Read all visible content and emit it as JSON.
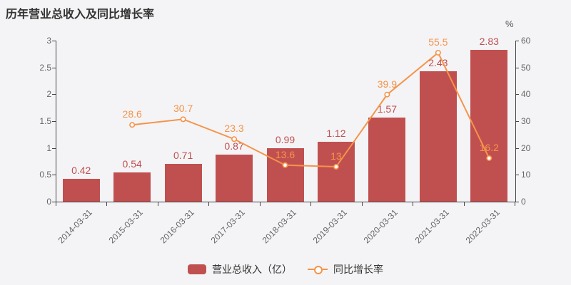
{
  "chart_data": {
    "type": "bar+line",
    "title": "历年营业总收入及同比增长率",
    "categories": [
      "2014-03-31",
      "2015-03-31",
      "2016-03-31",
      "2017-03-31",
      "2018-03-31",
      "2019-03-31",
      "2020-03-31",
      "2021-03-31",
      "2022-03-31"
    ],
    "series": [
      {
        "name": "营业总收入（亿）",
        "type": "bar",
        "axis": "left",
        "color": "#c05050",
        "values": [
          0.42,
          0.54,
          0.71,
          0.87,
          0.99,
          1.12,
          1.57,
          2.43,
          2.83
        ]
      },
      {
        "name": "同比增长率",
        "type": "line",
        "axis": "right",
        "color": "#f5944a",
        "marker": "hollow-circle",
        "values": [
          null,
          28.6,
          30.7,
          23.3,
          13.6,
          13,
          39.9,
          55.5,
          16.2
        ]
      }
    ],
    "left_axis": {
      "min": 0,
      "max": 3,
      "ticks": [
        "0",
        "0.5",
        "1",
        "1.5",
        "2",
        "2.5",
        "3"
      ]
    },
    "right_axis": {
      "min": 0,
      "max": 60,
      "ticks": [
        "0",
        "10",
        "20",
        "30",
        "40",
        "50",
        "60"
      ],
      "unit": "%"
    },
    "grid": false,
    "legend_position": "bottom"
  }
}
